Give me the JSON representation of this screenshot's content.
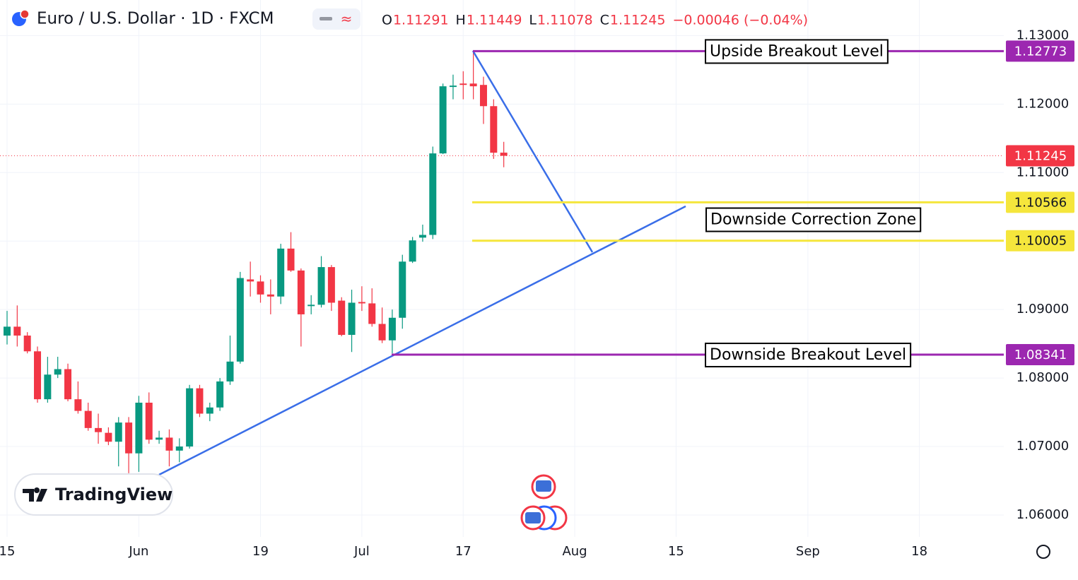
{
  "header": {
    "title": "Euro / U.S. Dollar · 1D · FXCM",
    "ohlc_labels": [
      "O",
      "H",
      "L",
      "C"
    ],
    "change": "−0.00046 (−0.04%)"
  },
  "watermark": "TradingView",
  "chart_data": {
    "type": "candlestick",
    "categories": [
      "15",
      null,
      null,
      null,
      null,
      null,
      null,
      null,
      null,
      null,
      null,
      null,
      null,
      "Jun",
      null,
      null,
      null,
      null,
      null,
      null,
      null,
      null,
      null,
      null,
      null,
      "19",
      null,
      null,
      null,
      null,
      null,
      null,
      null,
      null,
      null,
      "Jul",
      null,
      null,
      null,
      null,
      null,
      null,
      null,
      null,
      null,
      "17",
      null,
      null,
      null,
      null,
      null,
      null,
      null,
      null,
      null,
      null,
      "Aug",
      null,
      null,
      null,
      null,
      null,
      null,
      null,
      null,
      null,
      "15",
      null,
      null,
      null,
      null,
      null,
      null,
      null,
      null,
      null,
      null,
      null,
      null,
      "Sep",
      null,
      null,
      null,
      null,
      null,
      null,
      null,
      null,
      null,
      null,
      "18"
    ],
    "open": [
      1.0862,
      1.0875,
      1.0862,
      1.0839,
      1.0769,
      1.0805,
      1.0813,
      1.0769,
      1.0752,
      1.0727,
      1.072,
      1.0707,
      1.0735,
      1.069,
      1.0764,
      1.071,
      1.0713,
      1.0694,
      1.07,
      1.0785,
      1.0748,
      1.0757,
      1.0795,
      1.0824,
      1.0944,
      1.0941,
      1.0922,
      1.0919,
      1.0989,
      1.0957,
      1.0905,
      1.0907,
      1.0962,
      1.0913,
      1.0863,
      1.0911,
      1.0909,
      1.0879,
      1.0855,
      1.0888,
      1.097,
      1.1005,
      1.1009,
      1.1128,
      1.1225,
      1.123,
      1.123,
      1.1228,
      1.1197,
      1.11291,
      null,
      null,
      null,
      null,
      null,
      null,
      null,
      null,
      null,
      null,
      null,
      null,
      null,
      null,
      null,
      null,
      null,
      null,
      null,
      null,
      null,
      null,
      null,
      null,
      null,
      null,
      null,
      null,
      null,
      null,
      null,
      null,
      null,
      null,
      null,
      null,
      null,
      null,
      null,
      null,
      null
    ],
    "high": [
      1.0898,
      1.0906,
      1.0867,
      1.0846,
      1.0831,
      1.0831,
      1.0821,
      1.0795,
      1.0764,
      1.0748,
      1.0728,
      1.0743,
      1.0743,
      1.0774,
      1.0779,
      1.0723,
      1.0725,
      1.0712,
      1.079,
      1.079,
      1.0764,
      1.08,
      1.0862,
      1.0955,
      1.097,
      1.095,
      1.0944,
      1.0996,
      1.1013,
      1.096,
      1.0921,
      1.0978,
      1.0965,
      1.0918,
      1.0929,
      1.0934,
      1.0931,
      1.0903,
      1.09,
      1.098,
      1.1006,
      1.1024,
      1.1138,
      1.123,
      1.1243,
      1.1248,
      1.12773,
      1.124,
      1.1207,
      1.11449,
      null,
      null,
      null,
      null,
      null,
      null,
      null,
      null,
      null,
      null,
      null,
      null,
      null,
      null,
      null,
      null,
      null,
      null,
      null,
      null,
      null,
      null,
      null,
      null,
      null,
      null,
      null,
      null,
      null,
      null,
      null,
      null,
      null,
      null,
      null,
      null,
      null,
      null,
      null,
      null,
      null
    ],
    "low": [
      1.0849,
      1.0846,
      1.0836,
      1.0764,
      1.0764,
      1.08,
      1.0766,
      1.0748,
      1.0723,
      1.0704,
      1.0702,
      1.0671,
      1.0661,
      1.0663,
      1.0704,
      1.0704,
      1.0671,
      1.0677,
      1.0697,
      1.0743,
      1.0737,
      1.0752,
      1.079,
      1.0821,
      1.0919,
      1.091,
      1.0893,
      1.0908,
      1.0955,
      1.0846,
      1.0893,
      1.0903,
      1.0898,
      1.0861,
      1.0838,
      1.0898,
      1.0875,
      1.0851,
      1.0836,
      1.0872,
      1.0968,
      1.0999,
      1.1003,
      1.1127,
      1.1207,
      1.1207,
      1.1207,
      1.1171,
      1.112,
      1.11078,
      null,
      null,
      null,
      null,
      null,
      null,
      null,
      null,
      null,
      null,
      null,
      null,
      null,
      null,
      null,
      null,
      null,
      null,
      null,
      null,
      null,
      null,
      null,
      null,
      null,
      null,
      null,
      null,
      null,
      null,
      null,
      null,
      null,
      null,
      null,
      null,
      null,
      null,
      null,
      null,
      null
    ],
    "close": [
      1.0875,
      1.0862,
      1.0839,
      1.0769,
      1.0805,
      1.0813,
      1.0769,
      1.0752,
      1.0727,
      1.0721,
      1.0707,
      1.0735,
      1.069,
      1.0764,
      1.071,
      1.0713,
      1.0694,
      1.07,
      1.0785,
      1.0748,
      1.0757,
      1.0795,
      1.0824,
      1.0946,
      1.0941,
      1.0922,
      1.0919,
      1.0989,
      1.0957,
      1.0893,
      1.0907,
      1.0962,
      1.091,
      1.0863,
      1.091,
      1.0909,
      1.0879,
      1.0855,
      1.0888,
      1.097,
      1.1001,
      1.1009,
      1.1128,
      1.1226,
      1.1227,
      1.1228,
      1.1226,
      1.1197,
      1.1129,
      1.11245,
      null,
      null,
      null,
      null,
      null,
      null,
      null,
      null,
      null,
      null,
      null,
      null,
      null,
      null,
      null,
      null,
      null,
      null,
      null,
      null,
      null,
      null,
      null,
      null,
      null,
      null,
      null,
      null,
      null,
      null,
      null,
      null,
      null,
      null,
      null,
      null,
      null,
      null,
      null,
      null,
      null
    ],
    "up_color": "#089981",
    "down_color": "#f23645",
    "ylim": [
      1.0568,
      1.1352
    ],
    "yticks": [
      {
        "value": 1.06,
        "label": "1.06000"
      },
      {
        "value": 1.07,
        "label": "1.07000"
      },
      {
        "value": 1.08,
        "label": "1.08000"
      },
      {
        "value": 1.09,
        "label": "1.09000"
      },
      {
        "value": 1.1,
        "label": "1.10000"
      },
      {
        "value": 1.11,
        "label": "1.11000"
      },
      {
        "value": 1.12,
        "label": "1.12000"
      },
      {
        "value": 1.13,
        "label": "1.13000"
      }
    ],
    "grid": true,
    "levels": [
      {
        "name": "Upside Breakout Level",
        "value": 1.12773,
        "color": "#9c27b0"
      },
      {
        "value": 1.10566,
        "color": "#f5e63c"
      },
      {
        "value": 1.10005,
        "color": "#f5e63c"
      },
      {
        "name": "Downside Breakout Level",
        "value": 1.08341,
        "color": "#9c27b0"
      }
    ],
    "annotation": "Downside Correction Zone"
  }
}
